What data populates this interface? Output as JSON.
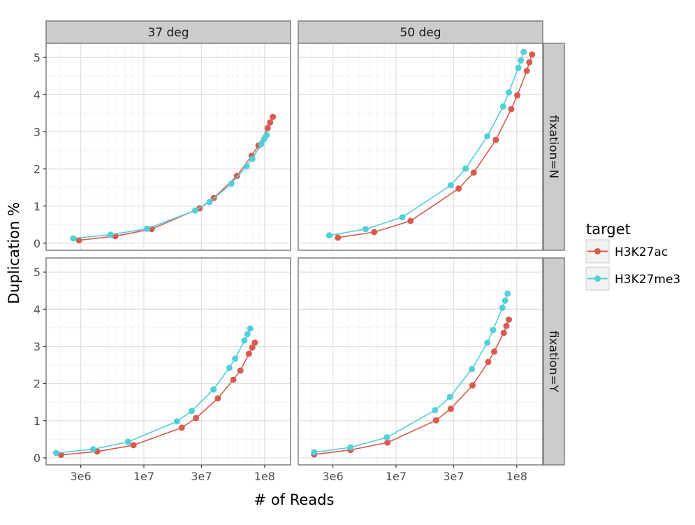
{
  "chart_data": {
    "type": "line",
    "xlabel": "# of Reads",
    "ylabel": "Duplication %",
    "x_scale": "log10",
    "xlim": [
      1550000.0,
      164000000.0
    ],
    "ylim": [
      -0.19,
      5.38
    ],
    "x_ticks": [
      {
        "value": 3000000.0,
        "label": "3e6"
      },
      {
        "value": 10000000.0,
        "label": "1e7"
      },
      {
        "value": 30000000.0,
        "label": "3e7"
      },
      {
        "value": 100000000.0,
        "label": "1e8"
      }
    ],
    "y_ticks": [
      0,
      1,
      2,
      3,
      4,
      5
    ],
    "grid": true,
    "legend": {
      "title": "target",
      "placement": "right",
      "entries": [
        {
          "name": "H3K27ac",
          "color": "#d95a4e"
        },
        {
          "name": "H3K27me3",
          "color": "#52cfd8"
        }
      ]
    },
    "col_facets": [
      "37 deg",
      "50 deg"
    ],
    "row_facets": [
      "fixation=N",
      "fixation=Y"
    ],
    "panels": [
      {
        "col": "37 deg",
        "row": "fixation=N",
        "series": [
          {
            "name": "H3K27ac",
            "x": [
              2900000.0,
              5800000.0,
              11600000.0,
              29000000.0,
              38000000.0,
              59000000.0,
              78000000.0,
              89000000.0,
              106000000.0,
              111000000.0,
              117000000.0
            ],
            "y": [
              0.08,
              0.19,
              0.38,
              0.94,
              1.22,
              1.81,
              2.35,
              2.63,
              3.1,
              3.25,
              3.4
            ]
          },
          {
            "name": "H3K27me3",
            "x": [
              2600000.0,
              5300000.0,
              10600000.0,
              26600000.0,
              35000000.0,
              53000000.0,
              71000000.0,
              79000000.0,
              94000000.0,
              99000000.0,
              104000000.0
            ],
            "y": [
              0.13,
              0.23,
              0.39,
              0.88,
              1.11,
              1.6,
              2.07,
              2.27,
              2.67,
              2.8,
              2.91
            ]
          }
        ]
      },
      {
        "col": "50 deg",
        "row": "fixation=N",
        "series": [
          {
            "name": "H3K27ac",
            "x": [
              3300000.0,
              6600000.0,
              13200000.0,
              33000000.0,
              44000000.0,
              67000000.0,
              90000000.0,
              101000000.0,
              121000000.0,
              127000000.0,
              134000000.0
            ],
            "y": [
              0.15,
              0.3,
              0.6,
              1.47,
              1.9,
              2.78,
              3.61,
              3.98,
              4.64,
              4.87,
              5.08
            ]
          },
          {
            "name": "H3K27me3",
            "x": [
              2800000.0,
              5600000.0,
              11300000.0,
              28400000.0,
              37700000.0,
              57000000.0,
              77000000.0,
              86000000.0,
              103000000.0,
              108000000.0,
              114000000.0
            ],
            "y": [
              0.21,
              0.38,
              0.7,
              1.56,
              2.01,
              2.88,
              3.68,
              4.06,
              4.72,
              4.92,
              5.15
            ]
          }
        ]
      },
      {
        "col": "37 deg",
        "row": "fixation=Y",
        "series": [
          {
            "name": "H3K27ac",
            "x": [
              2060000.0,
              4100000.0,
              8200000.0,
              20600000.0,
              27000000.0,
              41000000.0,
              55000000.0,
              63000000.0,
              74000000.0,
              79000000.0,
              83000000.0
            ],
            "y": [
              0.08,
              0.17,
              0.34,
              0.81,
              1.07,
              1.6,
              2.1,
              2.35,
              2.8,
              2.97,
              3.1
            ]
          },
          {
            "name": "H3K27me3",
            "x": [
              1880000.0,
              3800000.0,
              7400000.0,
              18800000.0,
              24900000.0,
              37700000.0,
              51000000.0,
              57000000.0,
              68000000.0,
              72000000.0,
              76000000.0
            ],
            "y": [
              0.13,
              0.23,
              0.43,
              0.98,
              1.26,
              1.84,
              2.42,
              2.67,
              3.16,
              3.33,
              3.48
            ]
          }
        ]
      },
      {
        "col": "50 deg",
        "row": "fixation=Y",
        "series": [
          {
            "name": "H3K27ac",
            "x": [
              2100000.0,
              4200000.0,
              8500000.0,
              21500000.0,
              28400000.0,
              43000000.0,
              58000000.0,
              65000000.0,
              78000000.0,
              82000000.0,
              86000000.0
            ],
            "y": [
              0.09,
              0.21,
              0.41,
              1.01,
              1.32,
              1.95,
              2.58,
              2.86,
              3.36,
              3.55,
              3.72
            ]
          },
          {
            "name": "H3K27me3",
            "x": [
              2100000.0,
              4200000.0,
              8400000.0,
              21000000.0,
              28000000.0,
              42500000.0,
              57000000.0,
              63500000.0,
              76000000.0,
              80000000.0,
              84000000.0
            ],
            "y": [
              0.15,
              0.28,
              0.55,
              1.28,
              1.64,
              2.39,
              3.1,
              3.44,
              4.04,
              4.23,
              4.42
            ]
          }
        ]
      }
    ]
  }
}
